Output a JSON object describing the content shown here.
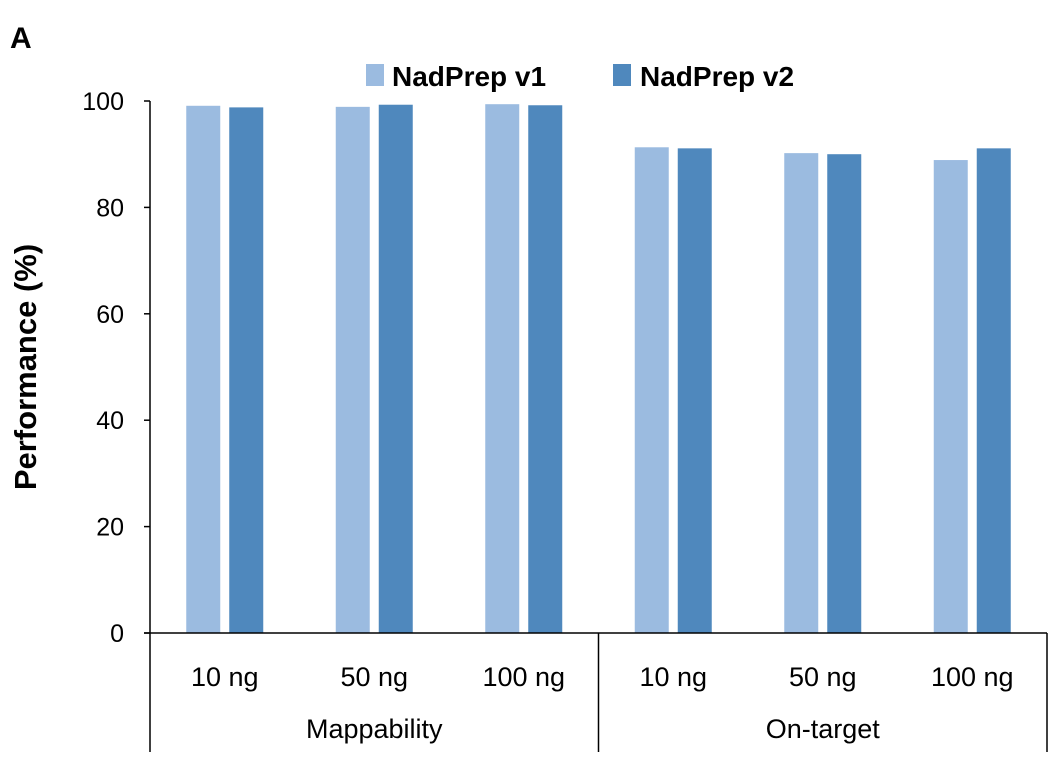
{
  "panel_label": "A",
  "colors": {
    "v1": "#9BBBE0",
    "v2": "#4F88BD"
  },
  "chart_data": {
    "type": "bar",
    "title": "",
    "ylabel": "Performance (%)",
    "xlabel": "",
    "ylim": [
      0,
      100
    ],
    "yticks": [
      0,
      20,
      40,
      60,
      80,
      100
    ],
    "grid": false,
    "legend_position": "top",
    "groups": [
      {
        "label": "Mappability",
        "categories": [
          "10 ng",
          "50 ng",
          "100 ng"
        ]
      },
      {
        "label": "On-target",
        "categories": [
          "10 ng",
          "50 ng",
          "100 ng"
        ]
      }
    ],
    "categories": [
      "10 ng",
      "50 ng",
      "100 ng",
      "10 ng",
      "50 ng",
      "100 ng"
    ],
    "series": [
      {
        "name": "NadPrep v1",
        "values": [
          99.1,
          98.9,
          99.4,
          91.3,
          90.2,
          88.9
        ]
      },
      {
        "name": "NadPrep v2",
        "values": [
          98.8,
          99.3,
          99.2,
          91.1,
          90.0,
          91.1
        ]
      }
    ]
  }
}
